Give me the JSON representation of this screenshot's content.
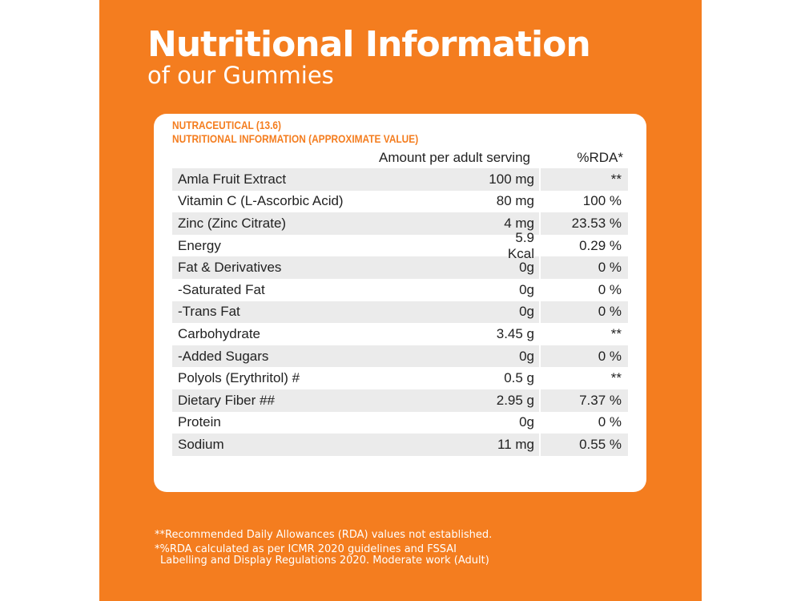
{
  "title": "Nutritional Information",
  "subtitle": "of our Gummies",
  "table": {
    "heading_line1": "NUTRACEUTICAL (13.6)",
    "heading_line2": "NUTRITIONAL INFORMATION (APPROXIMATE VALUE)",
    "col_amount": "Amount per adult serving",
    "col_rda": "%RDA*",
    "rows": [
      {
        "name": "Amla Fruit Extract",
        "amount": "100 mg",
        "rda": "**"
      },
      {
        "name": "Vitamin C (L-Ascorbic Acid)",
        "amount": "80 mg",
        "rda": "100 %"
      },
      {
        "name": "Zinc (Zinc Citrate)",
        "amount": "4 mg",
        "rda": "23.53 %"
      },
      {
        "name": "Energy",
        "amount": "5.9 Kcal",
        "rda": "0.29 %"
      },
      {
        "name": "Fat & Derivatives",
        "amount": "0g",
        "rda": "0 %"
      },
      {
        "name": "-Saturated Fat",
        "amount": "0g",
        "rda": "0 %"
      },
      {
        "name": "-Trans Fat",
        "amount": "0g",
        "rda": "0 %"
      },
      {
        "name": "Carbohydrate",
        "amount": "3.45 g",
        "rda": "**"
      },
      {
        "name": "-Added Sugars",
        "amount": "0g",
        "rda": "0 %"
      },
      {
        "name": "Polyols (Erythritol) #",
        "amount": "0.5 g",
        "rda": "**"
      },
      {
        "name": "Dietary Fiber ##",
        "amount": "2.95 g",
        "rda": "7.37 %"
      },
      {
        "name": "Protein",
        "amount": "0g",
        "rda": "0 %"
      },
      {
        "name": "Sodium",
        "amount": "11 mg",
        "rda": "0.55 %"
      }
    ]
  },
  "footnotes": {
    "note1": "**Recommended Daily Allowances (RDA) values not established.",
    "note2": "*%RDA calculated as per ICMR 2020 guidelines and FSSAI",
    "note3": "Labelling and Display Regulations 2020. Moderate work (Adult)"
  },
  "colors": {
    "accent": "#f47d1f",
    "row_shade": "#ebebeb"
  }
}
